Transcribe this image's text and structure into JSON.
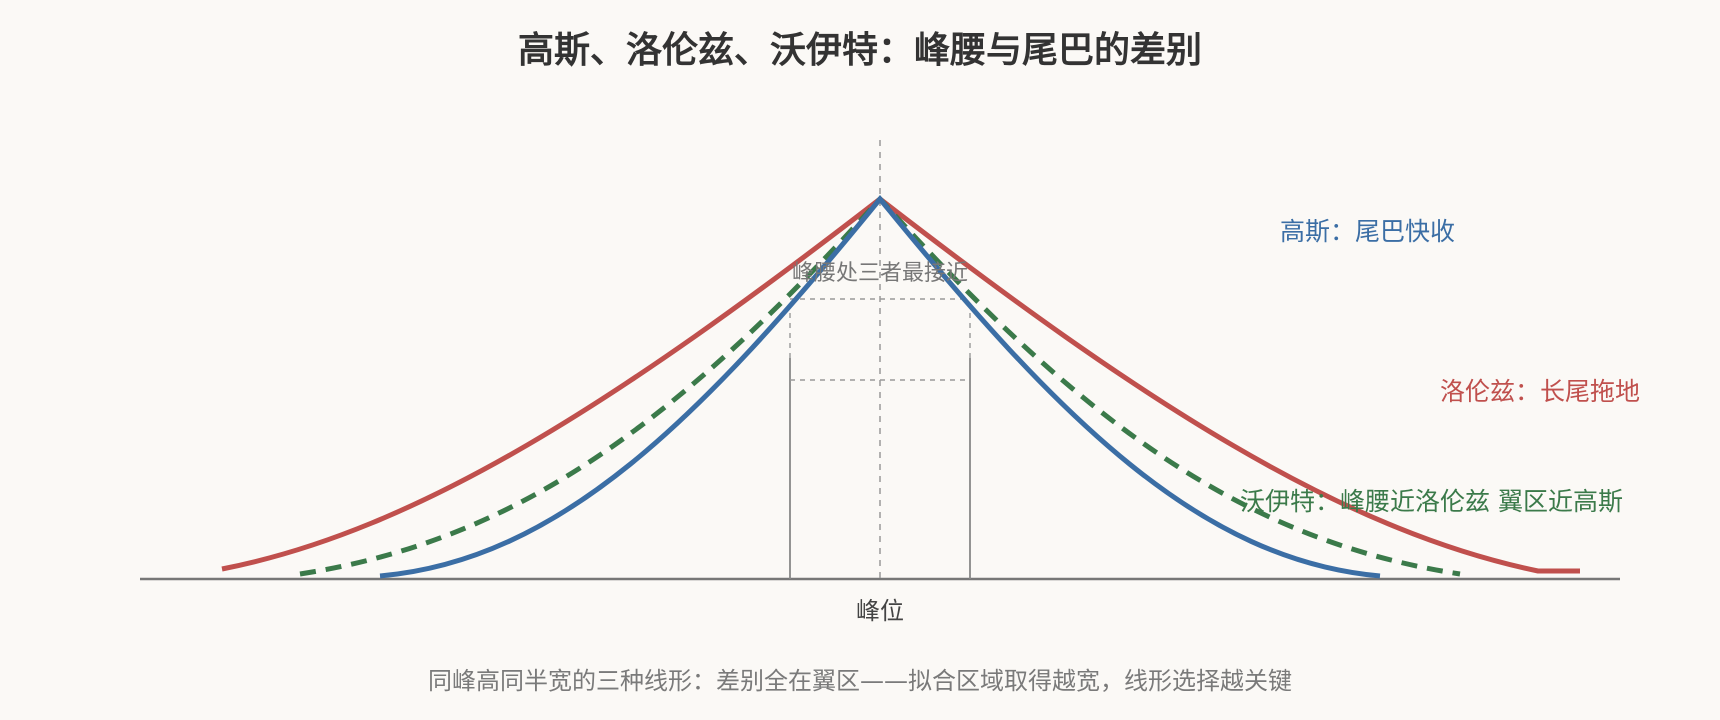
{
  "title": "高斯、洛伦兹、沃伊特：峰腰与尾巴的差别",
  "curves": {
    "gaussian": {
      "label": "高斯：尾巴快收",
      "color": "#3b6ea5"
    },
    "lorentzian": {
      "label": "洛伦兹：长尾拖地",
      "color": "#c0504d"
    },
    "voigt": {
      "label": "沃伊特：峰腰近洛伦兹 翼区近高斯",
      "color": "#3b7a4a"
    }
  },
  "annotation": "峰腰处三者最接近",
  "axis_label": "峰位",
  "caption": "同峰高同半宽的三种线形：差别全在翼区——拟合区域取得越宽，线形选择越关键",
  "colors": {
    "background": "#fbf9f6",
    "axis": "#777777",
    "guide": "#999999"
  }
}
